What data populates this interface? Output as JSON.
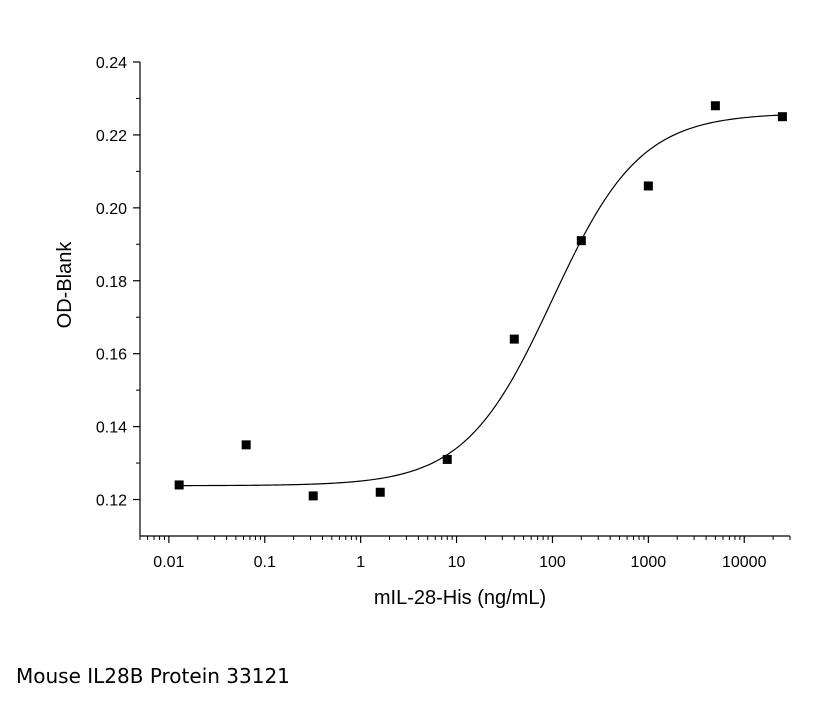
{
  "caption": "Mouse IL28B Protein 33121",
  "chart_data": {
    "type": "scatter",
    "xlabel": "mIL-28-His (ng/mL)",
    "ylabel": "OD-Blank",
    "xscale": "log",
    "xlim": [
      0.005,
      30000
    ],
    "ylim": [
      0.11,
      0.24
    ],
    "xticks": [
      {
        "value": 0.01,
        "label": "0.01"
      },
      {
        "value": 0.1,
        "label": "0.1"
      },
      {
        "value": 1,
        "label": "1"
      },
      {
        "value": 10,
        "label": "10"
      },
      {
        "value": 100,
        "label": "100"
      },
      {
        "value": 1000,
        "label": "1000"
      },
      {
        "value": 10000,
        "label": "10000"
      }
    ],
    "yticks": [
      {
        "value": 0.12,
        "label": "0.12"
      },
      {
        "value": 0.14,
        "label": "0.14"
      },
      {
        "value": 0.16,
        "label": "0.16"
      },
      {
        "value": 0.18,
        "label": "0.18"
      },
      {
        "value": 0.2,
        "label": "0.20"
      },
      {
        "value": 0.22,
        "label": "0.22"
      },
      {
        "value": 0.24,
        "label": "0.24"
      }
    ],
    "points": {
      "x": [
        0.0128,
        0.064,
        0.32,
        1.6,
        8,
        40,
        200,
        1000,
        5000,
        25000
      ],
      "y": [
        0.124,
        0.135,
        0.121,
        0.122,
        0.131,
        0.164,
        0.191,
        0.206,
        0.228,
        0.225
      ]
    },
    "fit": {
      "model": "4PL",
      "bottom": 0.1238,
      "top": 0.226,
      "ec50": 100,
      "hill": 0.95
    },
    "grid": false,
    "legend": "none",
    "marker_color": "#000000",
    "line_color": "#000000"
  }
}
